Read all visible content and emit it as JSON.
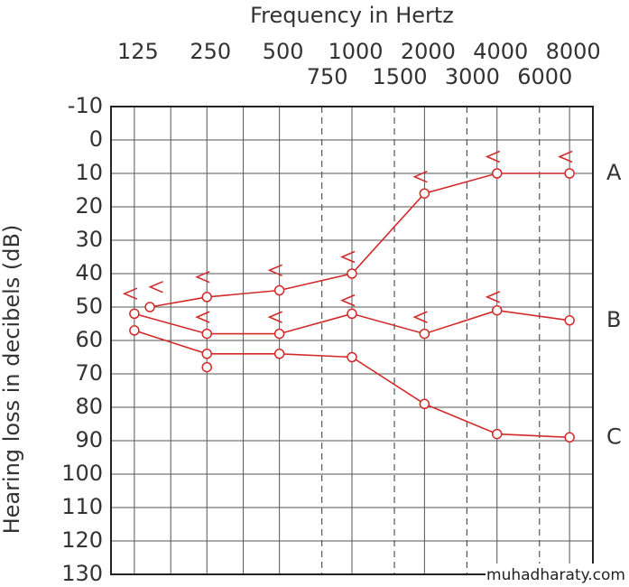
{
  "chart_data": {
    "type": "audiogram",
    "title": "Frequency in Hertz",
    "y_label": "Hearing loss in decibels (dB)",
    "watermark": "muhadharaty.com",
    "log_x": true,
    "xlim": [
      100,
      10000
    ],
    "xticks": [
      125,
      250,
      500,
      1000,
      2000,
      4000,
      8000
    ],
    "xticks_mid": [
      750,
      1500,
      3000,
      6000
    ],
    "mid_dashed": true,
    "xgrid_extra": [
      177,
      354
    ],
    "ylim": [
      -10,
      130
    ],
    "yticks": [
      -10,
      0,
      10,
      20,
      30,
      40,
      50,
      60,
      70,
      80,
      90,
      100,
      110,
      120,
      130
    ],
    "y_reversed": true,
    "grid": true,
    "color": "#d12a2a",
    "series": [
      {
        "name": "A",
        "line": true,
        "x": [
          145,
          250,
          500,
          1000,
          2000,
          4000,
          8000
        ],
        "values": [
          50,
          47,
          45,
          40,
          16,
          10,
          10
        ]
      },
      {
        "name": "B",
        "line": true,
        "x": [
          125,
          250,
          500,
          1000,
          2000,
          4000,
          8000
        ],
        "values": [
          52,
          58,
          58,
          52,
          58,
          51,
          54
        ]
      },
      {
        "name": "C",
        "line": true,
        "x": [
          125,
          250,
          500,
          1000,
          2000,
          4000,
          8000
        ],
        "values": [
          57,
          64,
          64,
          65,
          79,
          88,
          89
        ]
      },
      {
        "line": false,
        "x": [
          250
        ],
        "values": [
          68
        ]
      }
    ],
    "markers": [
      {
        "x": [
          125,
          160,
          250,
          500,
          1000,
          2000,
          4000,
          8000
        ],
        "values": [
          46,
          44,
          41,
          39,
          35,
          11,
          5,
          5
        ]
      },
      {
        "x": [
          250,
          500,
          1000,
          2000,
          4000
        ],
        "values": [
          53,
          53,
          48,
          53,
          47
        ]
      }
    ]
  }
}
